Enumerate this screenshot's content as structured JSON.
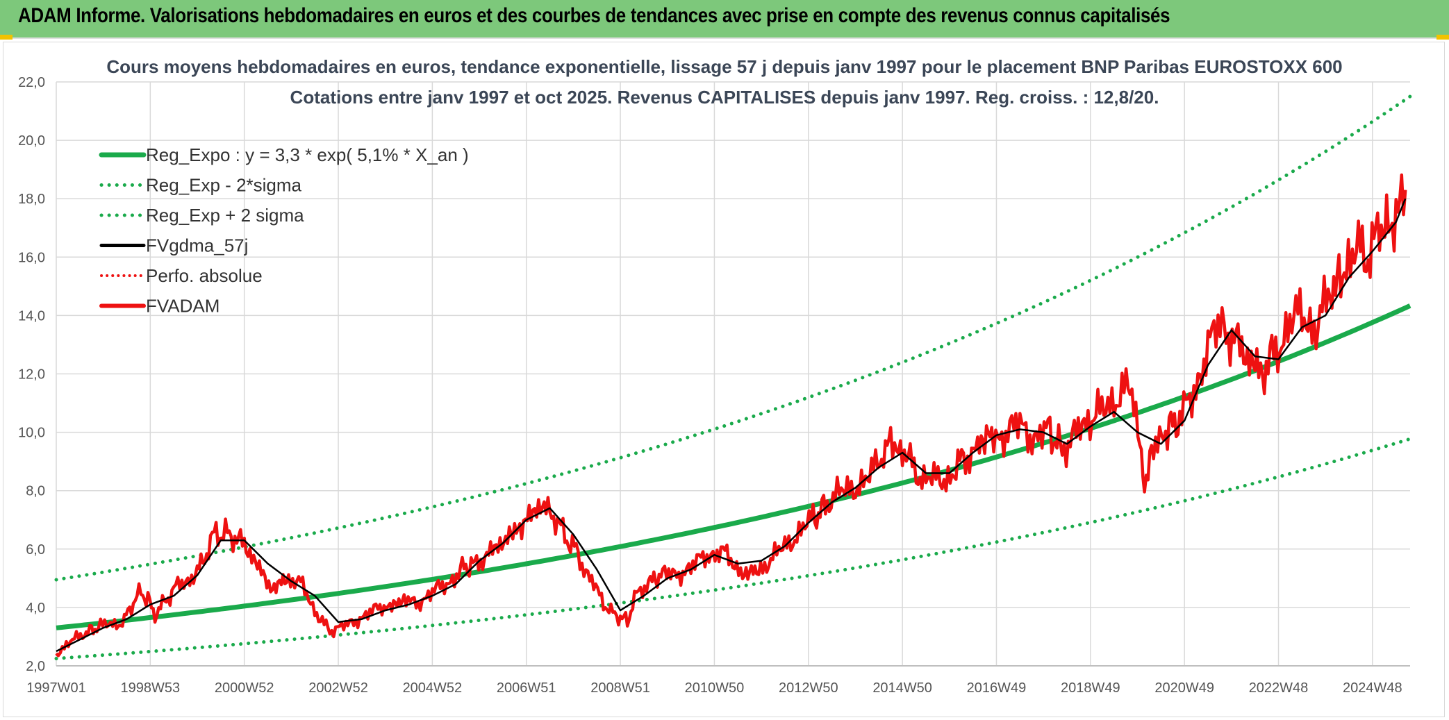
{
  "header": {
    "title": "ADAM Informe. Valorisations hebdomadaires en euros et des courbes de tendances avec prise en compte des revenus connus capitalisés"
  },
  "colors": {
    "banner_bg": "#7dc87b",
    "regression": "#1aaa4b",
    "fvgdma": "#000000",
    "fvadam": "#ee1111",
    "perfo": "#ee1111",
    "grid": "#d9d9d9"
  },
  "chart_data": {
    "type": "line",
    "title": "Cours moyens hebdomadaires en euros, tendance exponentielle, lissage 57 j depuis janv 1997 pour le placement BNP Paribas EUROSTOXX 600",
    "subtitle": "Cotations entre janv 1997 et oct 2025. Revenus CAPITALISES depuis janv 1997. Reg. croiss. : 12,8/20.",
    "xlabel": "",
    "ylabel": "",
    "xlim": [
      1997.0,
      2025.8
    ],
    "ylim": [
      2.0,
      22.0
    ],
    "ytick_values": [
      2,
      4,
      6,
      8,
      10,
      12,
      14,
      16,
      18,
      20,
      22
    ],
    "ytick_labels": [
      "2,0",
      "4,0",
      "6,0",
      "8,0",
      "10,0",
      "12,0",
      "14,0",
      "16,0",
      "18,0",
      "20,0",
      "22,0"
    ],
    "xtick_values": [
      1997.0,
      1999.0,
      2001.0,
      2003.0,
      2005.0,
      2007.0,
      2009.0,
      2011.0,
      2013.0,
      2015.0,
      2017.0,
      2019.0,
      2021.0,
      2023.0,
      2025.0
    ],
    "xtick_labels": [
      "1997W01",
      "1998W53",
      "2000W52",
      "2002W52",
      "2004W52",
      "2006W51",
      "2008W51",
      "2010W50",
      "2012W50",
      "2014W50",
      "2016W49",
      "2018W49",
      "2020W49",
      "2022W48",
      "2024W48"
    ],
    "legend_position": "top-left",
    "legend": [
      {
        "key": "reg",
        "label": "Reg_Expo : y = 3,3 * exp( 5,1% *  X_an )"
      },
      {
        "key": "low",
        "label": "Reg_Exp - 2*sigma"
      },
      {
        "key": "high",
        "label": "Reg_Exp + 2 sigma"
      },
      {
        "key": "fvgdma",
        "label": "FVgdma_57j"
      },
      {
        "key": "perfo",
        "label": "Perfo. absolue"
      },
      {
        "key": "fvadam",
        "label": "FVADAM"
      }
    ],
    "series": [
      {
        "name": "Reg_Expo",
        "x": [
          1997.0,
          2025.8
        ],
        "exp_base": 3.3,
        "exp_rate": 0.051,
        "style": "solid"
      },
      {
        "name": "Reg_Exp - 2*sigma",
        "x": [
          1997.0,
          2025.8
        ],
        "exp_base": 2.25,
        "exp_rate": 0.051,
        "style": "dotted"
      },
      {
        "name": "Reg_Exp + 2 sigma",
        "x": [
          1997.0,
          2025.8
        ],
        "exp_base": 4.95,
        "exp_rate": 0.051,
        "style": "dotted"
      },
      {
        "name": "FVADAM",
        "x": [
          1997.0,
          1997.3,
          1997.6,
          1997.9,
          1998.2,
          1998.45,
          1998.6,
          1998.8,
          1998.95,
          1999.1,
          1999.3,
          1999.5,
          1999.8,
          2000.0,
          2000.2,
          2000.4,
          2000.6,
          2000.8,
          2001.0,
          2001.2,
          2001.4,
          2001.6,
          2001.75,
          2001.9,
          2002.2,
          2002.5,
          2002.7,
          2002.9,
          2003.2,
          2003.5,
          2003.8,
          2004.1,
          2004.4,
          2004.7,
          2005.0,
          2005.3,
          2005.6,
          2005.9,
          2006.2,
          2006.4,
          2006.6,
          2006.9,
          2007.1,
          2007.3,
          2007.5,
          2007.7,
          2007.9,
          2008.1,
          2008.35,
          2008.6,
          2008.8,
          2009.0,
          2009.15,
          2009.3,
          2009.6,
          2009.9,
          2010.2,
          2010.5,
          2010.8,
          2011.1,
          2011.35,
          2011.6,
          2011.9,
          2012.2,
          2012.5,
          2012.8,
          2013.1,
          2013.4,
          2013.7,
          2014.0,
          2014.3,
          2014.6,
          2014.75,
          2015.0,
          2015.25,
          2015.5,
          2015.8,
          2016.1,
          2016.3,
          2016.6,
          2016.9,
          2017.2,
          2017.5,
          2017.8,
          2018.1,
          2018.4,
          2018.7,
          2018.95,
          2019.2,
          2019.5,
          2019.8,
          2020.05,
          2020.15,
          2020.3,
          2020.6,
          2020.9,
          2021.2,
          2021.5,
          2021.8,
          2022.1,
          2022.3,
          2022.5,
          2022.7,
          2022.9,
          2023.2,
          2023.5,
          2023.8,
          2024.1,
          2024.4,
          2024.7,
          2024.95,
          2025.15,
          2025.3,
          2025.5,
          2025.7
        ],
        "y": [
          2.45,
          2.8,
          3.1,
          3.35,
          3.4,
          3.55,
          4.1,
          4.5,
          4.3,
          3.7,
          4.2,
          4.6,
          4.9,
          5.2,
          5.9,
          6.6,
          6.5,
          6.4,
          6.2,
          5.6,
          5.2,
          4.5,
          4.9,
          5.0,
          4.8,
          3.9,
          3.4,
          3.2,
          3.4,
          3.7,
          3.9,
          4.1,
          4.2,
          4.2,
          4.5,
          4.8,
          5.3,
          5.5,
          5.9,
          6.1,
          6.4,
          6.8,
          7.2,
          7.5,
          7.3,
          6.8,
          6.3,
          5.8,
          5.0,
          4.3,
          3.8,
          3.7,
          3.5,
          4.3,
          4.9,
          5.1,
          5.2,
          5.3,
          5.8,
          5.9,
          5.7,
          5.1,
          5.3,
          5.6,
          6.1,
          6.6,
          7.0,
          7.6,
          7.9,
          8.2,
          8.4,
          9.3,
          9.7,
          9.4,
          8.7,
          8.4,
          8.3,
          8.7,
          9.1,
          9.6,
          9.9,
          10.0,
          10.2,
          9.9,
          10.0,
          9.5,
          9.9,
          10.5,
          10.6,
          11.2,
          11.6,
          9.9,
          8.1,
          9.2,
          10.2,
          10.3,
          11.5,
          12.8,
          13.8,
          13.2,
          12.6,
          12.3,
          12.0,
          12.8,
          13.6,
          14.0,
          13.7,
          14.6,
          15.7,
          16.1,
          16.2,
          17.1,
          16.8,
          17.5,
          18.3
        ]
      },
      {
        "name": "FVgdma_57j",
        "x": [
          1997.0,
          1997.5,
          1998.0,
          1998.5,
          1999.0,
          1999.5,
          2000.0,
          2000.5,
          2001.0,
          2001.5,
          2002.0,
          2002.5,
          2003.0,
          2003.5,
          2004.0,
          2004.5,
          2005.0,
          2005.5,
          2006.0,
          2006.5,
          2007.0,
          2007.5,
          2008.0,
          2008.5,
          2009.0,
          2009.5,
          2010.0,
          2010.5,
          2011.0,
          2011.5,
          2012.0,
          2012.5,
          2013.0,
          2013.5,
          2014.0,
          2014.5,
          2015.0,
          2015.5,
          2016.0,
          2016.5,
          2017.0,
          2017.5,
          2018.0,
          2018.5,
          2019.0,
          2019.5,
          2020.0,
          2020.5,
          2021.0,
          2021.5,
          2022.0,
          2022.5,
          2023.0,
          2023.5,
          2024.0,
          2024.5,
          2025.0,
          2025.5,
          2025.7
        ],
        "y": [
          2.5,
          2.9,
          3.3,
          3.6,
          4.1,
          4.4,
          5.1,
          6.3,
          6.3,
          5.5,
          4.9,
          4.4,
          3.5,
          3.6,
          3.9,
          4.1,
          4.4,
          4.8,
          5.6,
          6.2,
          7.0,
          7.4,
          6.5,
          5.3,
          3.9,
          4.4,
          5.0,
          5.3,
          5.8,
          5.5,
          5.6,
          6.1,
          6.9,
          7.6,
          8.1,
          8.8,
          9.3,
          8.6,
          8.6,
          9.3,
          9.9,
          10.1,
          10.0,
          9.6,
          10.2,
          10.7,
          10.0,
          9.6,
          10.4,
          12.3,
          13.5,
          12.6,
          12.5,
          13.6,
          14.0,
          15.3,
          16.2,
          17.2,
          18.0
        ]
      }
    ]
  }
}
